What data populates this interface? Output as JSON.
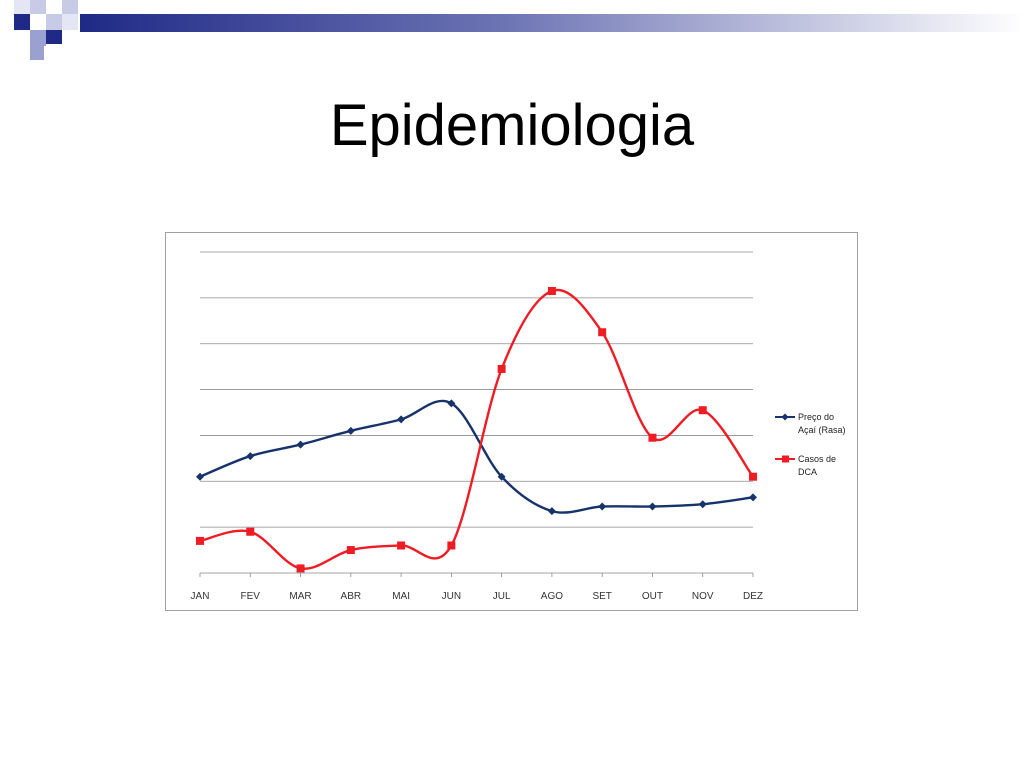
{
  "slide": {
    "title": "Epidemiologia",
    "accent_color": "#1f2a86",
    "accent_light": "#9aa0cf"
  },
  "chart_data": {
    "type": "line",
    "title": "",
    "xlabel": "",
    "ylabel": "",
    "categories": [
      "JAN",
      "FEV",
      "MAR",
      "ABR",
      "MAI",
      "JUN",
      "JUL",
      "AGO",
      "SET",
      "OUT",
      "NOV",
      "DEZ"
    ],
    "ylim": [
      0,
      7
    ],
    "grid": true,
    "y_tick_labels_visible": false,
    "legend_position": "right",
    "smooth": true,
    "series": [
      {
        "name": "Preço do Açaí (Rasa)",
        "legend_lines": [
          "Preço do",
          "Açaí (Rasa)"
        ],
        "color": "#17336b",
        "marker": "diamond",
        "values": [
          2.1,
          2.55,
          2.8,
          3.1,
          3.35,
          3.7,
          2.1,
          1.35,
          1.45,
          1.45,
          1.5,
          1.65
        ]
      },
      {
        "name": "Casos de DCA",
        "legend_lines": [
          "Casos de",
          "DCA"
        ],
        "color": "#ee1c24",
        "marker": "square",
        "values": [
          0.7,
          0.9,
          0.1,
          0.5,
          0.6,
          0.6,
          4.45,
          6.15,
          5.25,
          2.95,
          3.55,
          2.1
        ]
      }
    ]
  }
}
